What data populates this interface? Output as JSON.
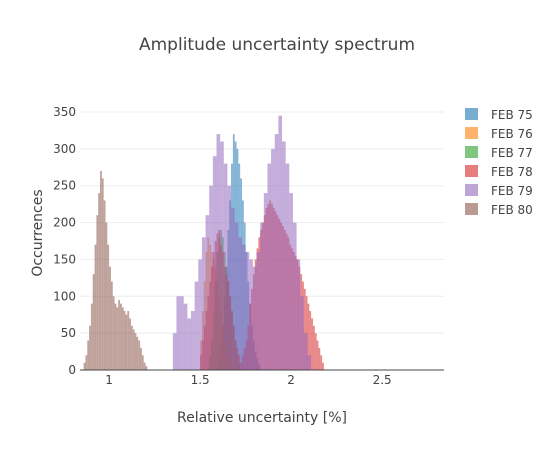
{
  "chart_data": {
    "type": "histogram",
    "title": "Amplitude uncertainty spectrum",
    "xlabel": "Relative uncertainty [%]",
    "ylabel": "Occurrences",
    "xlim": [
      0.84,
      2.84
    ],
    "ylim": [
      0,
      350
    ],
    "xticks": [
      1,
      1.5,
      2,
      2.5
    ],
    "xtick_labels": [
      "1",
      "1.5",
      "2",
      "2.5"
    ],
    "yticks": [
      0,
      50,
      100,
      150,
      200,
      250,
      300,
      350
    ],
    "ytick_labels": [
      "0",
      "50",
      "100",
      "150",
      "200",
      "250",
      "300",
      "350"
    ],
    "grid": true,
    "legend_position": "right",
    "series": [
      {
        "name": "FEB 75",
        "color": "#1f77b4",
        "x0": 1.6,
        "bin_width": 0.01,
        "counts": [
          20,
          40,
          60,
          100,
          140,
          190,
          230,
          280,
          320,
          310,
          300,
          280,
          260,
          230,
          200,
          160,
          120,
          90,
          60,
          40,
          25,
          15,
          8
        ]
      },
      {
        "name": "FEB 76",
        "color": "#ff7f0e",
        "x0": 1.5,
        "bin_width": 0.01,
        "counts": [
          40,
          80,
          120,
          160,
          180,
          170,
          160,
          150,
          140,
          120,
          100,
          80,
          60,
          40,
          30,
          20,
          12,
          6
        ]
      },
      {
        "name": "FEB 77",
        "color": "#2ca02c",
        "x0": 1.55,
        "bin_width": 0.01,
        "counts": [
          20,
          40,
          80,
          120,
          160,
          180,
          190,
          180,
          160,
          140,
          120,
          100,
          80,
          60,
          40,
          20,
          10
        ]
      },
      {
        "name": "FEB 78",
        "color": "#d62728",
        "x0": 1.5,
        "bin_width": 0.01,
        "counts": [
          20,
          40,
          60,
          80,
          100,
          120,
          140,
          160,
          175,
          185,
          190,
          170,
          160,
          140,
          130,
          120,
          100,
          80,
          60,
          40,
          30,
          20,
          10,
          20,
          30,
          40,
          60,
          90,
          110,
          130,
          150,
          165,
          180,
          190,
          200,
          210,
          220,
          225,
          230,
          225,
          220,
          215,
          210,
          205,
          200,
          195,
          190,
          185,
          180,
          170,
          165,
          160,
          155,
          150,
          140,
          130,
          120,
          110,
          100,
          90,
          80,
          70,
          60,
          50,
          40,
          30,
          20,
          10
        ]
      },
      {
        "name": "FEB 79",
        "color": "#9467bd",
        "x0": 1.35,
        "bin_width": 0.02,
        "counts": [
          50,
          100,
          100,
          90,
          70,
          80,
          120,
          150,
          180,
          210,
          250,
          290,
          320,
          310,
          280,
          250,
          220,
          200,
          180,
          170,
          160,
          150,
          140,
          160,
          200,
          240,
          280,
          300,
          320,
          345,
          310,
          280,
          240,
          200,
          150,
          100,
          50,
          20
        ]
      },
      {
        "name": "FEB 80",
        "color": "#8c564b",
        "x0": 0.86,
        "bin_width": 0.01,
        "counts": [
          10,
          20,
          40,
          60,
          90,
          130,
          170,
          210,
          240,
          270,
          260,
          230,
          200,
          170,
          140,
          120,
          100,
          90,
          85,
          95,
          90,
          85,
          80,
          75,
          80,
          70,
          60,
          55,
          50,
          45,
          40,
          30,
          20,
          10,
          5
        ]
      }
    ]
  }
}
